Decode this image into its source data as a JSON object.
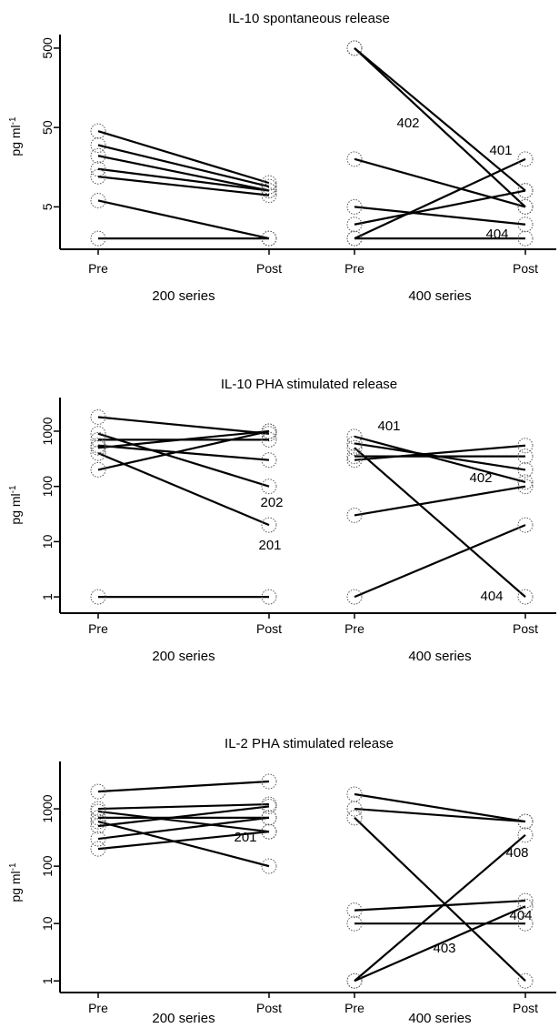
{
  "chart_data": [
    {
      "type": "line",
      "title": "IL-10 spontaneous release",
      "ylabel": "pg ml-1",
      "ylabel_base": "pg ml",
      "ylabel_sup": "-1",
      "yscale": "log",
      "ylim": [
        1.5,
        600
      ],
      "yticks": [
        5,
        50,
        500
      ],
      "ytick_labels": [
        "5",
        "50",
        "500"
      ],
      "groups": [
        {
          "name": "200 series",
          "xtick_labels": [
            "Pre",
            "Post"
          ],
          "subjects": [
            {
              "label": "",
              "pre": 45,
              "post": 10
            },
            {
              "label": "",
              "pre": 30,
              "post": 9
            },
            {
              "label": "",
              "pre": 22,
              "post": 8
            },
            {
              "label": "",
              "pre": 15,
              "post": 8
            },
            {
              "label": "",
              "pre": 12,
              "post": 7
            },
            {
              "label": "",
              "pre": 6,
              "post": 2
            },
            {
              "label": "",
              "pre": 2,
              "post": 2
            }
          ]
        },
        {
          "name": "400 series",
          "xtick_labels": [
            "Pre",
            "Post"
          ],
          "subjects": [
            {
              "label": "402",
              "pre": 500,
              "post": 8
            },
            {
              "label": "401",
              "pre": 2,
              "post": 20
            },
            {
              "label": "404",
              "pre": 5,
              "post": 3
            },
            {
              "label": "",
              "pre": 20,
              "post": 5
            },
            {
              "label": "",
              "pre": 500,
              "post": 5
            },
            {
              "label": "",
              "pre": 3,
              "post": 8
            },
            {
              "label": "",
              "pre": 2,
              "post": 2
            }
          ]
        }
      ]
    },
    {
      "type": "line",
      "title": "IL-10 PHA stimulated release",
      "ylabel": "pg ml-1",
      "ylabel_base": "pg ml",
      "ylabel_sup": "-1",
      "yscale": "log",
      "ylim": [
        0.8,
        3000
      ],
      "yticks": [
        1,
        10,
        100,
        1000
      ],
      "ytick_labels": [
        "1",
        "10",
        "100",
        "1000"
      ],
      "groups": [
        {
          "name": "200 series",
          "xtick_labels": [
            "Pre",
            "Post"
          ],
          "subjects": [
            {
              "label": "201",
              "pre": 400,
              "post": 20
            },
            {
              "label": "202",
              "pre": 900,
              "post": 100
            },
            {
              "label": "",
              "pre": 1800,
              "post": 900
            },
            {
              "label": "",
              "pre": 700,
              "post": 700
            },
            {
              "label": "",
              "pre": 550,
              "post": 300
            },
            {
              "label": "",
              "pre": 500,
              "post": 1000
            },
            {
              "label": "",
              "pre": 200,
              "post": 1000
            },
            {
              "label": "",
              "pre": 1,
              "post": 1
            }
          ]
        },
        {
          "name": "400 series",
          "xtick_labels": [
            "Pre",
            "Post"
          ],
          "subjects": [
            {
              "label": "401",
              "pre": 300,
              "post": 550
            },
            {
              "label": "402",
              "pre": 800,
              "post": 120
            },
            {
              "label": "404",
              "pre": 500,
              "post": 1
            },
            {
              "label": "",
              "pre": 600,
              "post": 200
            },
            {
              "label": "",
              "pre": 350,
              "post": 350
            },
            {
              "label": "",
              "pre": 30,
              "post": 100
            },
            {
              "label": "",
              "pre": 1,
              "post": 20
            }
          ]
        }
      ]
    },
    {
      "type": "line",
      "title": "IL-2 PHA stimulated release",
      "ylabel": "pg ml-1",
      "ylabel_base": "pg ml",
      "ylabel_sup": "-1",
      "yscale": "log",
      "ylim": [
        0.7,
        5000
      ],
      "yticks": [
        1,
        10,
        100,
        1000
      ],
      "ytick_labels": [
        "1",
        "10",
        "100",
        "1000"
      ],
      "groups": [
        {
          "name": "200 series",
          "xtick_labels": [
            "Pre",
            "Post"
          ],
          "subjects": [
            {
              "label": "201",
              "pre": 600,
              "post": 100
            },
            {
              "label": "",
              "pre": 2000,
              "post": 3000
            },
            {
              "label": "",
              "pre": 1000,
              "post": 1200
            },
            {
              "label": "",
              "pre": 900,
              "post": 400
            },
            {
              "label": "",
              "pre": 700,
              "post": 700
            },
            {
              "label": "",
              "pre": 500,
              "post": 1100
            },
            {
              "label": "",
              "pre": 300,
              "post": 700
            },
            {
              "label": "",
              "pre": 200,
              "post": 400
            }
          ]
        },
        {
          "name": "400 series",
          "xtick_labels": [
            "Pre",
            "Post"
          ],
          "subjects": [
            {
              "label": "408",
              "pre": 1,
              "post": 350
            },
            {
              "label": "403",
              "pre": 1,
              "post": 20
            },
            {
              "label": "404",
              "pre": 700,
              "post": 1
            },
            {
              "label": "",
              "pre": 1800,
              "post": 600
            },
            {
              "label": "",
              "pre": 1000,
              "post": 600
            },
            {
              "label": "",
              "pre": 17,
              "post": 25
            },
            {
              "label": "",
              "pre": 10,
              "post": 10
            }
          ]
        }
      ]
    }
  ]
}
